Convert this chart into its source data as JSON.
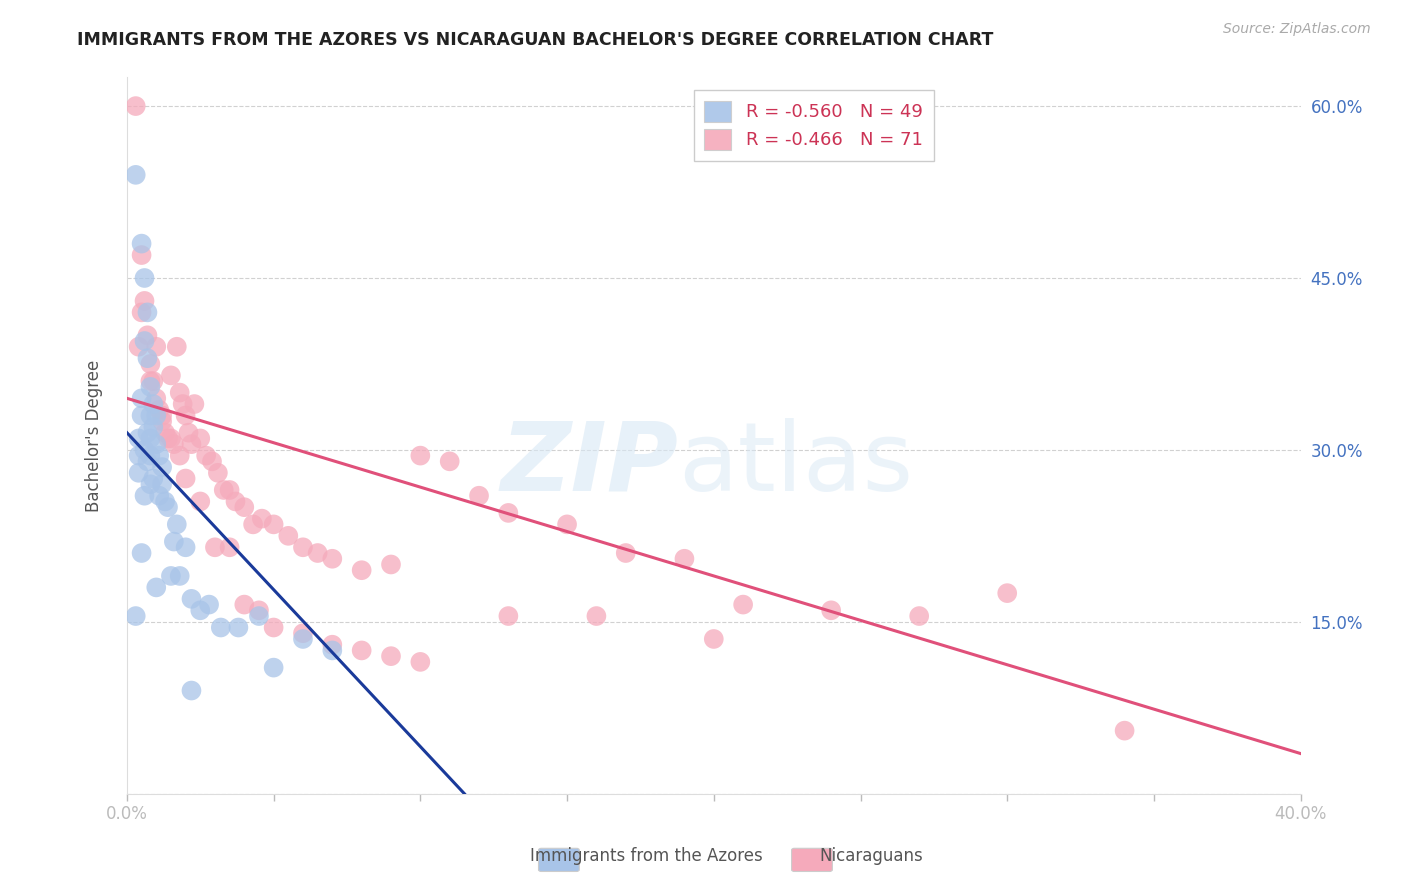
{
  "title": "IMMIGRANTS FROM THE AZORES VS NICARAGUAN BACHELOR'S DEGREE CORRELATION CHART",
  "source": "Source: ZipAtlas.com",
  "ylabel": "Bachelor's Degree",
  "xlim": [
    0.0,
    0.4
  ],
  "ylim": [
    0.0,
    0.625
  ],
  "x_tick_positions": [
    0.0,
    0.05,
    0.1,
    0.15,
    0.2,
    0.25,
    0.3,
    0.35,
    0.4
  ],
  "x_tick_labels": [
    "0.0%",
    "",
    "",
    "",
    "",
    "",
    "",
    "",
    "40.0%"
  ],
  "y_tick_positions": [
    0.0,
    0.15,
    0.3,
    0.45,
    0.6
  ],
  "y_tick_labels_right": [
    "",
    "15.0%",
    "30.0%",
    "45.0%",
    "60.0%"
  ],
  "legend_blue_r": "R = -0.560",
  "legend_blue_n": "N = 49",
  "legend_pink_r": "R = -0.466",
  "legend_pink_n": "N = 71",
  "blue_color": "#a8c4e8",
  "pink_color": "#f5aabb",
  "blue_line_color": "#1a3a9a",
  "pink_line_color": "#e0507a",
  "background_color": "#ffffff",
  "title_color": "#222222",
  "source_color": "#aaaaaa",
  "right_axis_color": "#4472c0",
  "grid_color": "#cccccc",
  "blue_line_x": [
    0.0,
    0.115
  ],
  "blue_line_y": [
    0.315,
    0.0
  ],
  "pink_line_x": [
    0.0,
    0.4
  ],
  "pink_line_y": [
    0.345,
    0.035
  ],
  "blue_scatter_x": [
    0.003,
    0.003,
    0.004,
    0.004,
    0.004,
    0.005,
    0.005,
    0.005,
    0.005,
    0.006,
    0.006,
    0.006,
    0.006,
    0.007,
    0.007,
    0.007,
    0.007,
    0.008,
    0.008,
    0.008,
    0.008,
    0.008,
    0.009,
    0.009,
    0.009,
    0.01,
    0.01,
    0.01,
    0.011,
    0.011,
    0.012,
    0.012,
    0.013,
    0.014,
    0.015,
    0.016,
    0.017,
    0.018,
    0.02,
    0.022,
    0.025,
    0.028,
    0.032,
    0.038,
    0.045,
    0.05,
    0.06,
    0.07,
    0.022
  ],
  "blue_scatter_y": [
    0.54,
    0.155,
    0.31,
    0.295,
    0.28,
    0.48,
    0.345,
    0.33,
    0.21,
    0.45,
    0.395,
    0.3,
    0.26,
    0.42,
    0.38,
    0.315,
    0.29,
    0.355,
    0.33,
    0.31,
    0.295,
    0.27,
    0.34,
    0.32,
    0.275,
    0.33,
    0.305,
    0.18,
    0.295,
    0.26,
    0.285,
    0.27,
    0.255,
    0.25,
    0.19,
    0.22,
    0.235,
    0.19,
    0.215,
    0.17,
    0.16,
    0.165,
    0.145,
    0.145,
    0.155,
    0.11,
    0.135,
    0.125,
    0.09
  ],
  "pink_scatter_x": [
    0.003,
    0.004,
    0.005,
    0.006,
    0.007,
    0.008,
    0.009,
    0.01,
    0.011,
    0.012,
    0.013,
    0.014,
    0.015,
    0.016,
    0.017,
    0.018,
    0.019,
    0.02,
    0.021,
    0.022,
    0.023,
    0.025,
    0.027,
    0.029,
    0.031,
    0.033,
    0.035,
    0.037,
    0.04,
    0.043,
    0.046,
    0.05,
    0.055,
    0.06,
    0.065,
    0.07,
    0.08,
    0.09,
    0.1,
    0.11,
    0.12,
    0.13,
    0.15,
    0.17,
    0.19,
    0.21,
    0.24,
    0.27,
    0.3,
    0.34,
    0.005,
    0.008,
    0.01,
    0.012,
    0.015,
    0.018,
    0.02,
    0.025,
    0.03,
    0.035,
    0.04,
    0.045,
    0.05,
    0.06,
    0.07,
    0.08,
    0.09,
    0.1,
    0.13,
    0.16,
    0.2
  ],
  "pink_scatter_y": [
    0.6,
    0.39,
    0.47,
    0.43,
    0.4,
    0.375,
    0.36,
    0.345,
    0.335,
    0.325,
    0.315,
    0.31,
    0.365,
    0.305,
    0.39,
    0.35,
    0.34,
    0.33,
    0.315,
    0.305,
    0.34,
    0.31,
    0.295,
    0.29,
    0.28,
    0.265,
    0.265,
    0.255,
    0.25,
    0.235,
    0.24,
    0.235,
    0.225,
    0.215,
    0.21,
    0.205,
    0.195,
    0.2,
    0.295,
    0.29,
    0.26,
    0.245,
    0.235,
    0.21,
    0.205,
    0.165,
    0.16,
    0.155,
    0.175,
    0.055,
    0.42,
    0.36,
    0.39,
    0.33,
    0.31,
    0.295,
    0.275,
    0.255,
    0.215,
    0.215,
    0.165,
    0.16,
    0.145,
    0.14,
    0.13,
    0.125,
    0.12,
    0.115,
    0.155,
    0.155,
    0.135
  ]
}
